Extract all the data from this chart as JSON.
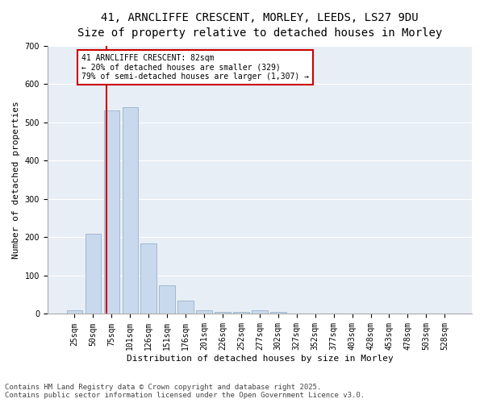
{
  "title_line1": "41, ARNCLIFFE CRESCENT, MORLEY, LEEDS, LS27 9DU",
  "title_line2": "Size of property relative to detached houses in Morley",
  "xlabel": "Distribution of detached houses by size in Morley",
  "ylabel": "Number of detached properties",
  "bar_labels": [
    "25sqm",
    "50sqm",
    "75sqm",
    "101sqm",
    "126sqm",
    "151sqm",
    "176sqm",
    "201sqm",
    "226sqm",
    "252sqm",
    "277sqm",
    "302sqm",
    "327sqm",
    "352sqm",
    "377sqm",
    "403sqm",
    "428sqm",
    "453sqm",
    "478sqm",
    "503sqm",
    "528sqm"
  ],
  "bar_values": [
    10,
    210,
    530,
    540,
    185,
    75,
    35,
    10,
    5,
    5,
    10,
    5,
    0,
    0,
    0,
    0,
    0,
    0,
    2,
    0,
    0
  ],
  "bar_color": "#c9d9ed",
  "bar_edge_color": "#a0b8d0",
  "vline_color": "#cc0000",
  "vline_x": 1.72,
  "annotation_box_text": "41 ARNCLIFFE CRESCENT: 82sqm\n← 20% of detached houses are smaller (329)\n79% of semi-detached houses are larger (1,307) →",
  "annotation_box_color": "#cc0000",
  "ylim": [
    0,
    700
  ],
  "yticks": [
    0,
    100,
    200,
    300,
    400,
    500,
    600,
    700
  ],
  "bg_color": "#e8eef5",
  "footer_line1": "Contains HM Land Registry data © Crown copyright and database right 2025.",
  "footer_line2": "Contains public sector information licensed under the Open Government Licence v3.0.",
  "title_fontsize": 10,
  "subtitle_fontsize": 9,
  "axis_label_fontsize": 8,
  "tick_fontsize": 7,
  "annot_fontsize": 7,
  "footer_fontsize": 6.5
}
